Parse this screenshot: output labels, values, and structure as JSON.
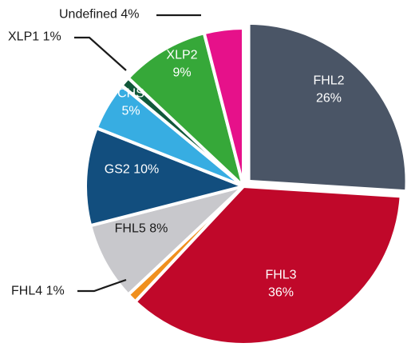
{
  "chart_data": {
    "type": "pie",
    "title": "",
    "slices": [
      {
        "name": "FHL2",
        "value": 26,
        "label": "FHL2",
        "value_label": "26%",
        "color": "#4a5566",
        "label_placement": "inside-two-line",
        "label_color": "#ffffff"
      },
      {
        "name": "FHL3",
        "value": 36,
        "label": "FHL3",
        "value_label": "36%",
        "color": "#c0082a",
        "label_placement": "inside-two-line",
        "label_color": "#ffffff"
      },
      {
        "name": "FHL4",
        "value": 1,
        "label": "FHL4 1%",
        "color": "#f0901e",
        "label_placement": "outside",
        "label_color": "#1a1a1a"
      },
      {
        "name": "FHL5",
        "value": 8,
        "label": "FHL5 8%",
        "color": "#c8c8cc",
        "label_placement": "inside-one-line",
        "label_color": "#1a1a1a"
      },
      {
        "name": "GS2",
        "value": 10,
        "label": "GS2 10%",
        "color": "#124e7e",
        "label_placement": "inside-one-line",
        "label_color": "#ffffff"
      },
      {
        "name": "CHS",
        "value": 5,
        "label": "CHS",
        "value_label": "5%",
        "color": "#37ade2",
        "label_placement": "inside-two-line",
        "label_color": "#ffffff"
      },
      {
        "name": "XLP1",
        "value": 1,
        "label": "XLP1 1%",
        "color": "#11583a",
        "label_placement": "outside",
        "label_color": "#1a1a1a"
      },
      {
        "name": "XLP2",
        "value": 9,
        "label": "XLP2",
        "value_label": "9%",
        "color": "#36a839",
        "label_placement": "inside-two-line",
        "label_color": "#ffffff"
      },
      {
        "name": "Undefined",
        "value": 4,
        "label": "Undefined 4%",
        "color": "#e6118a",
        "label_placement": "outside",
        "label_color": "#1a1a1a"
      }
    ],
    "legend": "none",
    "start_angle_deg": 0,
    "direction": "clockwise",
    "exploded_slice": "FHL2"
  }
}
